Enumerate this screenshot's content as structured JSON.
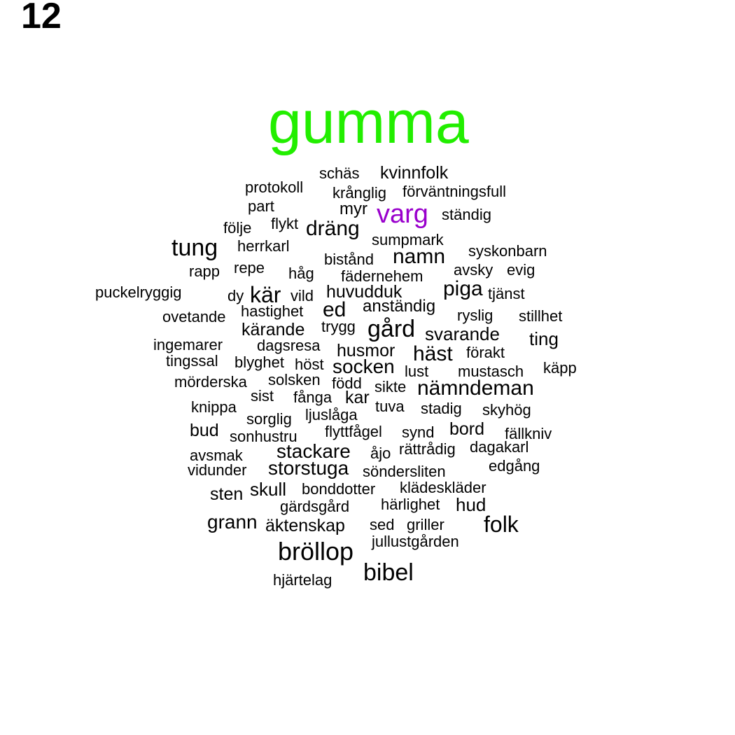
{
  "panel_label": "12",
  "colors": {
    "default": "#000000",
    "highlight_1": "#22ee00",
    "highlight_2": "#9900cc"
  },
  "words": [
    {
      "text": "gumma",
      "weight": 10,
      "color": "#22ee00"
    },
    {
      "text": "varg",
      "weight": 4,
      "color": "#9900cc"
    },
    {
      "text": "schäs",
      "weight": 1
    },
    {
      "text": "kvinnfolk",
      "weight": 1.5
    },
    {
      "text": "protokoll",
      "weight": 1
    },
    {
      "text": "krånglig",
      "weight": 1
    },
    {
      "text": "förväntningsfull",
      "weight": 1
    },
    {
      "text": "part",
      "weight": 1
    },
    {
      "text": "myr",
      "weight": 1
    },
    {
      "text": "ständig",
      "weight": 1
    },
    {
      "text": "följe",
      "weight": 1
    },
    {
      "text": "flykt",
      "weight": 1
    },
    {
      "text": "dräng",
      "weight": 2
    },
    {
      "text": "tung",
      "weight": 3
    },
    {
      "text": "herrkarl",
      "weight": 1
    },
    {
      "text": "sumpmark",
      "weight": 1
    },
    {
      "text": "syskonbarn",
      "weight": 1
    },
    {
      "text": "bistånd",
      "weight": 1
    },
    {
      "text": "namn",
      "weight": 2
    },
    {
      "text": "rapp",
      "weight": 1
    },
    {
      "text": "repe",
      "weight": 1
    },
    {
      "text": "håg",
      "weight": 1
    },
    {
      "text": "fädernehem",
      "weight": 1
    },
    {
      "text": "avsky",
      "weight": 1
    },
    {
      "text": "evig",
      "weight": 1
    },
    {
      "text": "puckelryggig",
      "weight": 1
    },
    {
      "text": "dy",
      "weight": 1
    },
    {
      "text": "kär",
      "weight": 2.5
    },
    {
      "text": "vild",
      "weight": 1
    },
    {
      "text": "huvudduk",
      "weight": 1.5
    },
    {
      "text": "piga",
      "weight": 2
    },
    {
      "text": "tjänst",
      "weight": 1
    },
    {
      "text": "ovetande",
      "weight": 1
    },
    {
      "text": "hastighet",
      "weight": 1
    },
    {
      "text": "ed",
      "weight": 2
    },
    {
      "text": "anständig",
      "weight": 1.5
    },
    {
      "text": "ryslig",
      "weight": 1
    },
    {
      "text": "stillhet",
      "weight": 1
    },
    {
      "text": "kärande",
      "weight": 1.5
    },
    {
      "text": "trygg",
      "weight": 1
    },
    {
      "text": "gård",
      "weight": 3
    },
    {
      "text": "svarande",
      "weight": 2
    },
    {
      "text": "ting",
      "weight": 2
    },
    {
      "text": "ingemarer",
      "weight": 1
    },
    {
      "text": "dagsresa",
      "weight": 1
    },
    {
      "text": "husmor",
      "weight": 1.5
    },
    {
      "text": "häst",
      "weight": 2
    },
    {
      "text": "förakt",
      "weight": 1
    },
    {
      "text": "tingssal",
      "weight": 1
    },
    {
      "text": "blyghet",
      "weight": 1
    },
    {
      "text": "höst",
      "weight": 1
    },
    {
      "text": "socken",
      "weight": 2
    },
    {
      "text": "lust",
      "weight": 1
    },
    {
      "text": "mustasch",
      "weight": 1
    },
    {
      "text": "käpp",
      "weight": 1
    },
    {
      "text": "mörderska",
      "weight": 1
    },
    {
      "text": "solsken",
      "weight": 1
    },
    {
      "text": "född",
      "weight": 1
    },
    {
      "text": "sikte",
      "weight": 1
    },
    {
      "text": "nämndeman",
      "weight": 2
    },
    {
      "text": "sist",
      "weight": 1
    },
    {
      "text": "fånga",
      "weight": 1
    },
    {
      "text": "kar",
      "weight": 1.5
    },
    {
      "text": "knippa",
      "weight": 1
    },
    {
      "text": "tuva",
      "weight": 1
    },
    {
      "text": "stadig",
      "weight": 1
    },
    {
      "text": "skyhög",
      "weight": 1
    },
    {
      "text": "ljuslåga",
      "weight": 1
    },
    {
      "text": "sorglig",
      "weight": 1
    },
    {
      "text": "bud",
      "weight": 1.5
    },
    {
      "text": "flyttfågel",
      "weight": 1
    },
    {
      "text": "synd",
      "weight": 1
    },
    {
      "text": "bord",
      "weight": 1.5
    },
    {
      "text": "fällkniv",
      "weight": 1
    },
    {
      "text": "sonhustru",
      "weight": 1
    },
    {
      "text": "stackare",
      "weight": 2
    },
    {
      "text": "åjo",
      "weight": 1
    },
    {
      "text": "rättrådig",
      "weight": 1
    },
    {
      "text": "dagakarl",
      "weight": 1
    },
    {
      "text": "avsmak",
      "weight": 1
    },
    {
      "text": "vidunder",
      "weight": 1
    },
    {
      "text": "storstuga",
      "weight": 2
    },
    {
      "text": "söndersliten",
      "weight": 1
    },
    {
      "text": "edgång",
      "weight": 1
    },
    {
      "text": "sten",
      "weight": 1.5
    },
    {
      "text": "skull",
      "weight": 1.5
    },
    {
      "text": "bonddotter",
      "weight": 1
    },
    {
      "text": "klädeskläder",
      "weight": 1
    },
    {
      "text": "gärdsgård",
      "weight": 1
    },
    {
      "text": "härlighet",
      "weight": 1
    },
    {
      "text": "hud",
      "weight": 1.5
    },
    {
      "text": "grann",
      "weight": 2
    },
    {
      "text": "äktenskap",
      "weight": 1.5
    },
    {
      "text": "sed",
      "weight": 1
    },
    {
      "text": "griller",
      "weight": 1
    },
    {
      "text": "folk",
      "weight": 2.5
    },
    {
      "text": "jullustgården",
      "weight": 1
    },
    {
      "text": "bröllop",
      "weight": 3
    },
    {
      "text": "bibel",
      "weight": 3
    },
    {
      "text": "hjärtelag",
      "weight": 1
    }
  ]
}
